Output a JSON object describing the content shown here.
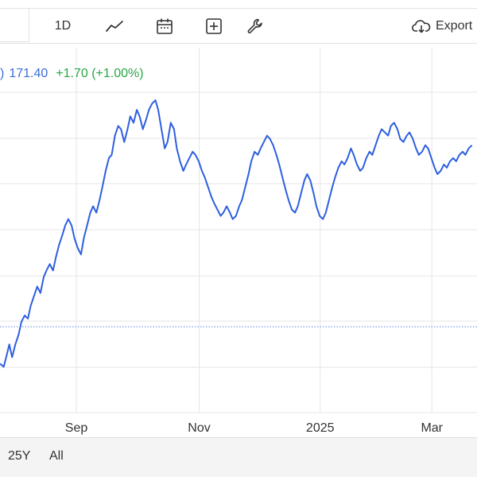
{
  "toolbar": {
    "interval_label": "1D",
    "icons": [
      "line-chart-icon",
      "calendar-icon",
      "plus-box-icon",
      "wrench-icon",
      "cloud-download-icon"
    ],
    "export_label": "Export"
  },
  "legend": {
    "prefix": ")",
    "price": "171.40",
    "change": "+1.70 (+1.00%)"
  },
  "colors": {
    "line": "#2e5fe0",
    "grid": "#e6e6e6",
    "baseline": "#5b86e5",
    "price": "#3a6fd8",
    "change": "#28a745"
  },
  "range_buttons": [
    "25Y",
    "All"
  ],
  "chart_data": {
    "type": "line",
    "x_tick_labels": [
      "Sep",
      "Nov",
      "2025",
      "Mar"
    ],
    "x_tick_positions": [
      0.84,
      3.48,
      6.08,
      8.48
    ],
    "xlim": [
      -0.8,
      9.45
    ],
    "ylim": [
      0,
      100
    ],
    "grid": true,
    "baseline_y": 26.5,
    "series": [
      {
        "values": [
          [
            -0.8,
            15
          ],
          [
            -0.72,
            14
          ],
          [
            -0.65,
            18
          ],
          [
            -0.6,
            21
          ],
          [
            -0.54,
            17
          ],
          [
            -0.47,
            21
          ],
          [
            -0.4,
            24
          ],
          [
            -0.34,
            28
          ],
          [
            -0.27,
            30
          ],
          [
            -0.2,
            29
          ],
          [
            -0.14,
            33
          ],
          [
            -0.07,
            36
          ],
          [
            0.0,
            39
          ],
          [
            0.07,
            37
          ],
          [
            0.14,
            42
          ],
          [
            0.2,
            44
          ],
          [
            0.27,
            46
          ],
          [
            0.34,
            44
          ],
          [
            0.4,
            48
          ],
          [
            0.47,
            52
          ],
          [
            0.54,
            55
          ],
          [
            0.6,
            58
          ],
          [
            0.67,
            60
          ],
          [
            0.74,
            58
          ],
          [
            0.8,
            54
          ],
          [
            0.87,
            51
          ],
          [
            0.94,
            49
          ],
          [
            1.0,
            54
          ],
          [
            1.07,
            58
          ],
          [
            1.14,
            62
          ],
          [
            1.2,
            64
          ],
          [
            1.27,
            62
          ],
          [
            1.34,
            66
          ],
          [
            1.4,
            70
          ],
          [
            1.47,
            75
          ],
          [
            1.54,
            79
          ],
          [
            1.6,
            80
          ],
          [
            1.67,
            86
          ],
          [
            1.74,
            89
          ],
          [
            1.8,
            88
          ],
          [
            1.87,
            84
          ],
          [
            1.94,
            88
          ],
          [
            2.0,
            92
          ],
          [
            2.07,
            90
          ],
          [
            2.14,
            94
          ],
          [
            2.2,
            92
          ],
          [
            2.27,
            88
          ],
          [
            2.34,
            91
          ],
          [
            2.4,
            94
          ],
          [
            2.47,
            96
          ],
          [
            2.54,
            97
          ],
          [
            2.6,
            94
          ],
          [
            2.67,
            88
          ],
          [
            2.74,
            82
          ],
          [
            2.8,
            84
          ],
          [
            2.87,
            90
          ],
          [
            2.94,
            88
          ],
          [
            3.0,
            82
          ],
          [
            3.07,
            78
          ],
          [
            3.14,
            75
          ],
          [
            3.2,
            77
          ],
          [
            3.27,
            79
          ],
          [
            3.34,
            81
          ],
          [
            3.4,
            80
          ],
          [
            3.47,
            78
          ],
          [
            3.54,
            75
          ],
          [
            3.6,
            73
          ],
          [
            3.67,
            70
          ],
          [
            3.74,
            67
          ],
          [
            3.8,
            65
          ],
          [
            3.87,
            63
          ],
          [
            3.94,
            61
          ],
          [
            4.0,
            62
          ],
          [
            4.07,
            64
          ],
          [
            4.14,
            62
          ],
          [
            4.2,
            60
          ],
          [
            4.27,
            61
          ],
          [
            4.34,
            64
          ],
          [
            4.4,
            66
          ],
          [
            4.47,
            70
          ],
          [
            4.54,
            74
          ],
          [
            4.6,
            78
          ],
          [
            4.67,
            81
          ],
          [
            4.74,
            80
          ],
          [
            4.8,
            82
          ],
          [
            4.87,
            84
          ],
          [
            4.94,
            86
          ],
          [
            5.0,
            85
          ],
          [
            5.07,
            83
          ],
          [
            5.14,
            80
          ],
          [
            5.2,
            77
          ],
          [
            5.27,
            73
          ],
          [
            5.34,
            69
          ],
          [
            5.4,
            66
          ],
          [
            5.47,
            63
          ],
          [
            5.54,
            62
          ],
          [
            5.6,
            64
          ],
          [
            5.67,
            68
          ],
          [
            5.74,
            72
          ],
          [
            5.8,
            74
          ],
          [
            5.87,
            72
          ],
          [
            5.94,
            68
          ],
          [
            6.0,
            64
          ],
          [
            6.07,
            61
          ],
          [
            6.14,
            60
          ],
          [
            6.2,
            62
          ],
          [
            6.27,
            66
          ],
          [
            6.34,
            70
          ],
          [
            6.4,
            73
          ],
          [
            6.47,
            76
          ],
          [
            6.54,
            78
          ],
          [
            6.6,
            77
          ],
          [
            6.67,
            79
          ],
          [
            6.74,
            82
          ],
          [
            6.8,
            80
          ],
          [
            6.87,
            77
          ],
          [
            6.94,
            75
          ],
          [
            7.0,
            76
          ],
          [
            7.07,
            79
          ],
          [
            7.14,
            81
          ],
          [
            7.2,
            80
          ],
          [
            7.27,
            83
          ],
          [
            7.34,
            86
          ],
          [
            7.4,
            88
          ],
          [
            7.47,
            87
          ],
          [
            7.54,
            86
          ],
          [
            7.6,
            89
          ],
          [
            7.67,
            90
          ],
          [
            7.74,
            88
          ],
          [
            7.8,
            85
          ],
          [
            7.87,
            84
          ],
          [
            7.94,
            86
          ],
          [
            8.0,
            87
          ],
          [
            8.07,
            85
          ],
          [
            8.14,
            82
          ],
          [
            8.2,
            80
          ],
          [
            8.27,
            81
          ],
          [
            8.34,
            83
          ],
          [
            8.4,
            82
          ],
          [
            8.47,
            79
          ],
          [
            8.54,
            76
          ],
          [
            8.6,
            74
          ],
          [
            8.67,
            75
          ],
          [
            8.74,
            77
          ],
          [
            8.8,
            76
          ],
          [
            8.87,
            78
          ],
          [
            8.94,
            79
          ],
          [
            9.0,
            78
          ],
          [
            9.07,
            80
          ],
          [
            9.14,
            81
          ],
          [
            9.2,
            80
          ],
          [
            9.27,
            82
          ],
          [
            9.34,
            83
          ]
        ]
      }
    ]
  }
}
